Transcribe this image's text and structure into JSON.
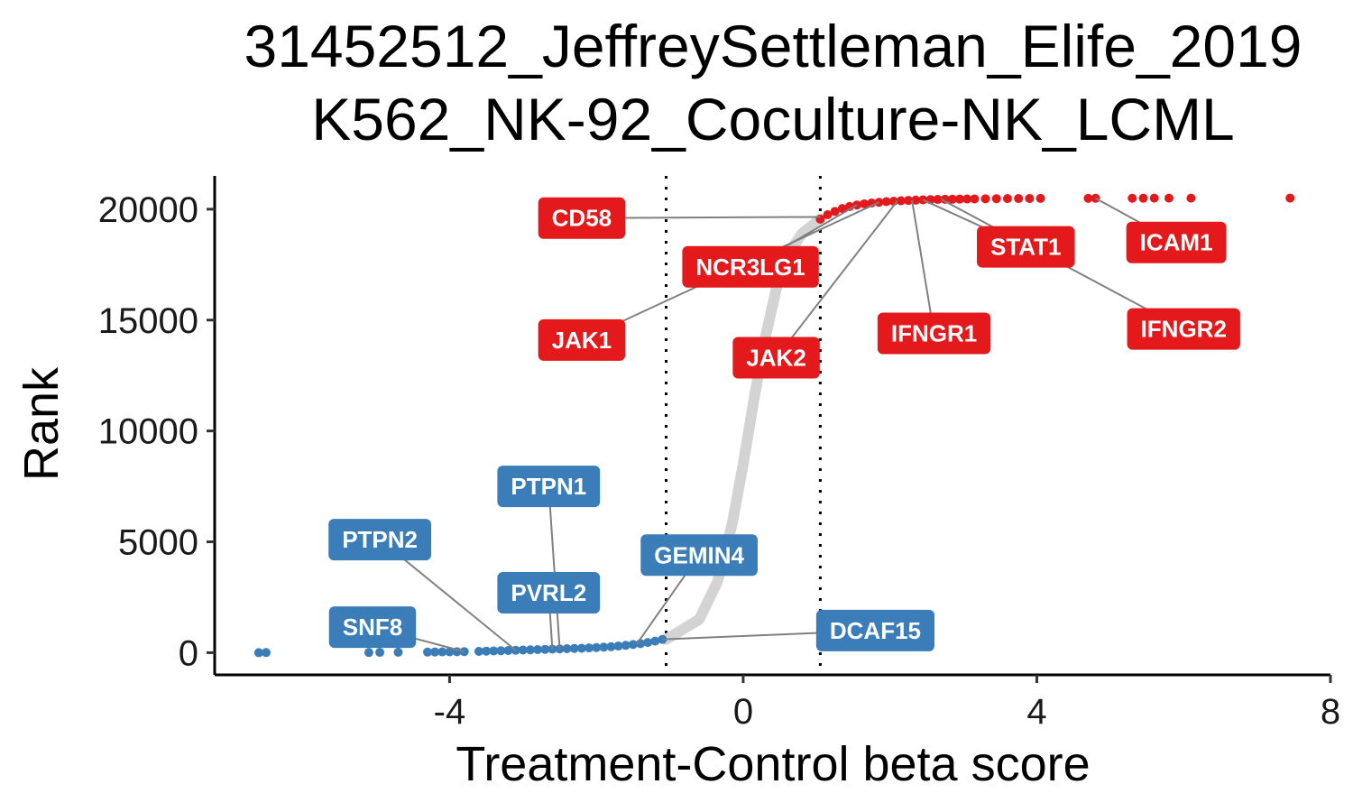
{
  "chart_data": {
    "type": "scatter",
    "title_lines": [
      "31452512_JeffreySettleman_Elife_2019",
      "K562_NK-92_Coculture-NK_LCML"
    ],
    "xlabel": "Treatment-Control beta score",
    "ylabel": "Rank",
    "xlim": [
      -7.2,
      8.0
    ],
    "ylim": [
      -1000,
      21500
    ],
    "x_ticks": [
      -4,
      0,
      4,
      8
    ],
    "x_tick_labels": [
      "-4",
      "0",
      "4",
      "8"
    ],
    "y_ticks": [
      0,
      5000,
      10000,
      15000,
      20000
    ],
    "y_tick_labels": [
      "0",
      "5000",
      "10000",
      "15000",
      "20000"
    ],
    "threshold_lines": [
      -1.05,
      1.05
    ],
    "colors": {
      "negative": "#3a7db8",
      "positive": "#e3191c",
      "neutral": "#d3d3d3",
      "connector": "#808080"
    },
    "points_negative": [
      {
        "x": -6.6,
        "y": 0
      },
      {
        "x": -6.5,
        "y": 5
      },
      {
        "x": -5.1,
        "y": 10
      },
      {
        "x": -4.95,
        "y": 15
      },
      {
        "x": -4.7,
        "y": 20
      },
      {
        "x": -4.3,
        "y": 25
      },
      {
        "x": -4.2,
        "y": 30
      },
      {
        "x": -4.1,
        "y": 35
      },
      {
        "x": -4.0,
        "y": 40
      },
      {
        "x": -3.9,
        "y": 45
      },
      {
        "x": -3.8,
        "y": 50
      },
      {
        "x": -3.6,
        "y": 60
      },
      {
        "x": -3.5,
        "y": 70
      },
      {
        "x": -3.4,
        "y": 80
      },
      {
        "x": -3.3,
        "y": 90
      },
      {
        "x": -3.2,
        "y": 100
      },
      {
        "x": -3.1,
        "y": 110
      },
      {
        "x": -3.0,
        "y": 120
      },
      {
        "x": -2.9,
        "y": 130
      },
      {
        "x": -2.8,
        "y": 140
      },
      {
        "x": -2.7,
        "y": 150
      },
      {
        "x": -2.6,
        "y": 160
      },
      {
        "x": -2.5,
        "y": 170
      },
      {
        "x": -2.4,
        "y": 180
      },
      {
        "x": -2.3,
        "y": 190
      },
      {
        "x": -2.2,
        "y": 200
      },
      {
        "x": -2.1,
        "y": 215
      },
      {
        "x": -2.0,
        "y": 230
      },
      {
        "x": -1.9,
        "y": 250
      },
      {
        "x": -1.8,
        "y": 270
      },
      {
        "x": -1.7,
        "y": 300
      },
      {
        "x": -1.6,
        "y": 330
      },
      {
        "x": -1.5,
        "y": 370
      },
      {
        "x": -1.4,
        "y": 410
      },
      {
        "x": -1.3,
        "y": 460
      },
      {
        "x": -1.2,
        "y": 520
      },
      {
        "x": -1.1,
        "y": 600
      }
    ],
    "points_positive": [
      {
        "x": 1.05,
        "y": 19550
      },
      {
        "x": 1.15,
        "y": 19750
      },
      {
        "x": 1.25,
        "y": 19900
      },
      {
        "x": 1.35,
        "y": 20030
      },
      {
        "x": 1.45,
        "y": 20120
      },
      {
        "x": 1.55,
        "y": 20190
      },
      {
        "x": 1.65,
        "y": 20240
      },
      {
        "x": 1.75,
        "y": 20280
      },
      {
        "x": 1.85,
        "y": 20310
      },
      {
        "x": 1.95,
        "y": 20340
      },
      {
        "x": 2.05,
        "y": 20360
      },
      {
        "x": 2.15,
        "y": 20380
      },
      {
        "x": 2.25,
        "y": 20395
      },
      {
        "x": 2.35,
        "y": 20410
      },
      {
        "x": 2.45,
        "y": 20420
      },
      {
        "x": 2.55,
        "y": 20430
      },
      {
        "x": 2.65,
        "y": 20440
      },
      {
        "x": 2.75,
        "y": 20445
      },
      {
        "x": 2.85,
        "y": 20450
      },
      {
        "x": 2.95,
        "y": 20455
      },
      {
        "x": 3.05,
        "y": 20460
      },
      {
        "x": 3.15,
        "y": 20465
      },
      {
        "x": 3.3,
        "y": 20470
      },
      {
        "x": 3.45,
        "y": 20475
      },
      {
        "x": 3.6,
        "y": 20478
      },
      {
        "x": 3.75,
        "y": 20481
      },
      {
        "x": 3.9,
        "y": 20484
      },
      {
        "x": 4.05,
        "y": 20487
      },
      {
        "x": 4.7,
        "y": 20490
      },
      {
        "x": 4.8,
        "y": 20492
      },
      {
        "x": 5.3,
        "y": 20494
      },
      {
        "x": 5.45,
        "y": 20496
      },
      {
        "x": 5.6,
        "y": 20497
      },
      {
        "x": 5.8,
        "y": 20498
      },
      {
        "x": 6.1,
        "y": 20499
      },
      {
        "x": 7.45,
        "y": 20500
      }
    ],
    "neutral_curve": [
      {
        "x": -1.05,
        "y": 600
      },
      {
        "x": -0.6,
        "y": 1500
      },
      {
        "x": -0.35,
        "y": 3200
      },
      {
        "x": -0.15,
        "y": 5800
      },
      {
        "x": 0.0,
        "y": 8500
      },
      {
        "x": 0.15,
        "y": 11500
      },
      {
        "x": 0.3,
        "y": 14200
      },
      {
        "x": 0.45,
        "y": 16400
      },
      {
        "x": 0.6,
        "y": 17900
      },
      {
        "x": 0.8,
        "y": 18900
      },
      {
        "x": 1.05,
        "y": 19550
      }
    ],
    "labels": [
      {
        "gene": "CD58",
        "group": "positive",
        "point": {
          "x": 1.05,
          "y": 19650
        },
        "label": {
          "x": -2.2,
          "y": 19600
        }
      },
      {
        "gene": "NCR3LG1",
        "group": "positive",
        "point": {
          "x": 1.55,
          "y": 20190
        },
        "label": {
          "x": 0.1,
          "y": 17400
        }
      },
      {
        "gene": "JAK1",
        "group": "positive",
        "point": {
          "x": 1.85,
          "y": 20310
        },
        "label": {
          "x": -2.2,
          "y": 14100
        }
      },
      {
        "gene": "JAK2",
        "group": "positive",
        "point": {
          "x": 2.1,
          "y": 20370
        },
        "label": {
          "x": 0.45,
          "y": 13300
        }
      },
      {
        "gene": "STAT1",
        "group": "positive",
        "point": {
          "x": 2.45,
          "y": 20420
        },
        "label": {
          "x": 3.85,
          "y": 18300
        }
      },
      {
        "gene": "IFNGR1",
        "group": "positive",
        "point": {
          "x": 2.3,
          "y": 20400
        },
        "label": {
          "x": 2.6,
          "y": 14400
        }
      },
      {
        "gene": "ICAM1",
        "group": "positive",
        "point": {
          "x": 4.8,
          "y": 20492
        },
        "label": {
          "x": 5.9,
          "y": 18500
        }
      },
      {
        "gene": "IFNGR2",
        "group": "positive",
        "point": {
          "x": 2.7,
          "y": 20443
        },
        "label": {
          "x": 6.0,
          "y": 14600
        }
      },
      {
        "gene": "PTPN1",
        "group": "negative",
        "point": {
          "x": -2.5,
          "y": 170
        },
        "label": {
          "x": -2.65,
          "y": 7500
        }
      },
      {
        "gene": "PTPN2",
        "group": "negative",
        "point": {
          "x": -3.1,
          "y": 110
        },
        "label": {
          "x": -4.95,
          "y": 5100
        }
      },
      {
        "gene": "PVRL2",
        "group": "negative",
        "point": {
          "x": -2.6,
          "y": 160
        },
        "label": {
          "x": -2.65,
          "y": 2700
        }
      },
      {
        "gene": "SNF8",
        "group": "negative",
        "point": {
          "x": -3.8,
          "y": 50
        },
        "label": {
          "x": -5.05,
          "y": 1150
        }
      },
      {
        "gene": "GEMIN4",
        "group": "negative",
        "point": {
          "x": -1.45,
          "y": 390
        },
        "label": {
          "x": -0.6,
          "y": 4400
        }
      },
      {
        "gene": "DCAF15",
        "group": "negative",
        "point": {
          "x": -1.1,
          "y": 600
        },
        "label": {
          "x": 1.8,
          "y": 1000
        }
      }
    ],
    "grid": false,
    "legend": "none"
  }
}
